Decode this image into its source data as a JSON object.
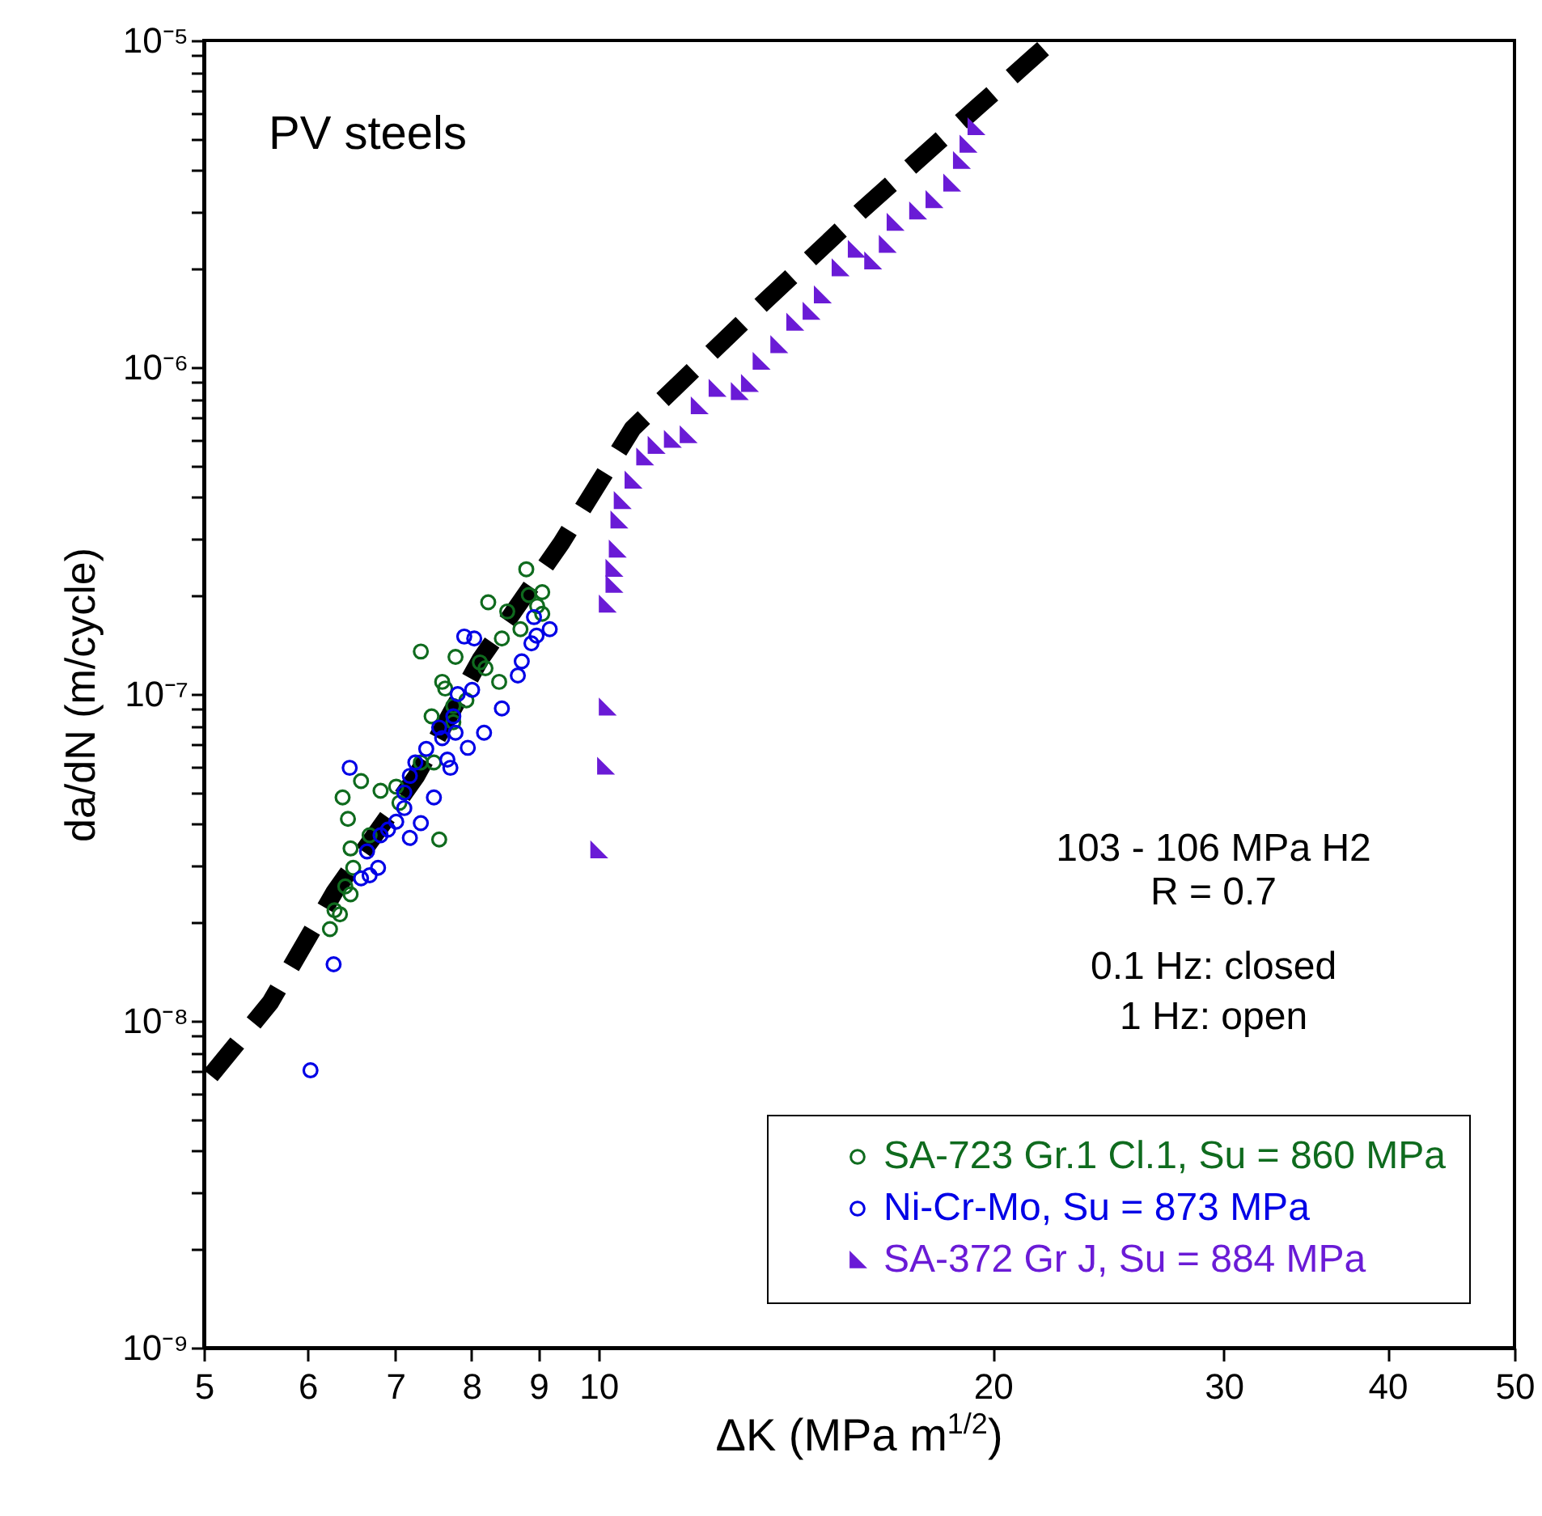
{
  "chart_data": {
    "type": "scatter",
    "title": "PV steels",
    "xlabel": "ΔK (MPa m$^{1/2}$)",
    "ylabel": "da/dN (m/cycle)",
    "annotations": [
      "103 - 106 MPa H2",
      "R = 0.7",
      "0.1 Hz: closed",
      "1 Hz: open"
    ],
    "log": "xy",
    "xlim": [
      5,
      50
    ],
    "ylim": [
      1e-09,
      1e-05
    ],
    "xticks": [
      5,
      6,
      7,
      8,
      9,
      10,
      20,
      30,
      40,
      50
    ],
    "yticks": [
      {
        "value": 1e-09,
        "label": "10⁻⁹"
      },
      {
        "value": 2e-09,
        "label": null
      },
      {
        "value": 3e-09,
        "label": null
      },
      {
        "value": 4e-09,
        "label": null
      },
      {
        "value": 5e-09,
        "label": null
      },
      {
        "value": 6e-09,
        "label": null
      },
      {
        "value": 7e-09,
        "label": null
      },
      {
        "value": 8e-09,
        "label": null
      },
      {
        "value": 9e-09,
        "label": null
      },
      {
        "value": 1e-08,
        "label": "10⁻⁸"
      },
      {
        "value": 2e-08,
        "label": null
      },
      {
        "value": 3e-08,
        "label": null
      },
      {
        "value": 4e-08,
        "label": null
      },
      {
        "value": 5e-08,
        "label": null
      },
      {
        "value": 6e-08,
        "label": null
      },
      {
        "value": 7e-08,
        "label": null
      },
      {
        "value": 8e-08,
        "label": null
      },
      {
        "value": 9e-08,
        "label": null
      },
      {
        "value": 1e-07,
        "label": "10⁻⁷"
      },
      {
        "value": 2e-07,
        "label": null
      },
      {
        "value": 3e-07,
        "label": null
      },
      {
        "value": 4e-07,
        "label": null
      },
      {
        "value": 5e-07,
        "label": null
      },
      {
        "value": 6e-07,
        "label": null
      },
      {
        "value": 7e-07,
        "label": null
      },
      {
        "value": 8e-07,
        "label": null
      },
      {
        "value": 9e-07,
        "label": null
      },
      {
        "value": 1e-06,
        "label": "10⁻⁶"
      },
      {
        "value": 2e-06,
        "label": null
      },
      {
        "value": 3e-06,
        "label": null
      },
      {
        "value": 4e-06,
        "label": null
      },
      {
        "value": 5e-06,
        "label": null
      },
      {
        "value": 6e-06,
        "label": null
      },
      {
        "value": 7e-06,
        "label": null
      },
      {
        "value": 8e-06,
        "label": null
      },
      {
        "value": 9e-06,
        "label": null
      },
      {
        "value": 1e-05,
        "label": "10⁻⁵"
      }
    ],
    "grid": false,
    "legend": "bottom right",
    "series": [
      {
        "name": "SA-723 Gr.1 Cl.1, Su = 860 MPa",
        "color": "#0f6b1e",
        "marker": "circle",
        "x": [
          8.81,
          8.24,
          8.85,
          8.52,
          9.06,
          9.06,
          8.72,
          8.44,
          7.32,
          7.78,
          8.2,
          8.4,
          7.6,
          7.64,
          7.93,
          7.46,
          7.75,
          7.32,
          7.49,
          6.59,
          6.82,
          7.01,
          6.38,
          6.44,
          7.05,
          7.56,
          6.47,
          6.69,
          6.5,
          6.41,
          6.47,
          6.29,
          6.35,
          6.24,
          8.12,
          7.75,
          8.98
        ],
        "values": [
          2.41e-07,
          1.91e-07,
          2.01e-07,
          1.79e-07,
          2.05e-07,
          1.76e-07,
          1.58e-07,
          1.48e-07,
          1.35e-07,
          1.3e-07,
          1.2e-07,
          1.09e-07,
          1.09e-07,
          1.04e-07,
          9.57e-08,
          8.55e-08,
          8.2e-08,
          6.18e-08,
          6.18e-08,
          5.42e-08,
          5.06e-08,
          5.21e-08,
          4.83e-08,
          4.15e-08,
          4.65e-08,
          3.59e-08,
          3.37e-08,
          3.7e-08,
          2.94e-08,
          2.58e-08,
          2.44e-08,
          2.18e-08,
          2.12e-08,
          1.91e-08,
          1.25e-07,
          9.2e-08,
          1.86e-07
        ]
      },
      {
        "name": "Ni-Cr-Mo, Su = 873 MPa",
        "color": "#0000e6",
        "marker": "circle",
        "x": [
          7.9,
          8.04,
          9.18,
          8.93,
          8.97,
          8.89,
          8.74,
          8.68,
          8.01,
          7.81,
          8.44,
          7.75,
          7.78,
          8.18,
          7.95,
          7.6,
          7.67,
          7.71,
          7.39,
          7.25,
          7.49,
          7.18,
          7.32,
          7.18,
          7.11,
          7.01,
          6.91,
          6.46,
          6.82,
          6.66,
          6.79,
          6.69,
          6.59,
          6.28,
          7.11,
          7.56,
          6.03
        ],
        "values": [
          1.5e-07,
          1.48e-07,
          1.58e-07,
          1.72e-07,
          1.51e-07,
          1.43e-07,
          1.26e-07,
          1.14e-07,
          1.03e-07,
          1e-07,
          9.04e-08,
          8.55e-08,
          7.62e-08,
          7.62e-08,
          6.85e-08,
          7.33e-08,
          6.3e-08,
          5.95e-08,
          6.8e-08,
          6.18e-08,
          4.83e-08,
          5.62e-08,
          4.03e-08,
          3.63e-08,
          4.48e-08,
          4.07e-08,
          3.85e-08,
          5.95e-08,
          3.7e-08,
          3.3e-08,
          2.94e-08,
          2.79e-08,
          2.73e-08,
          1.49e-08,
          5e-08,
          7.9e-08,
          7.06e-09
        ]
      },
      {
        "name": "SA-372 Gr J, Su = 884 MPa",
        "color": "#6a1bd6",
        "marker": "triangle",
        "x": [
          10.0,
          10.12,
          10.15,
          10.15,
          10.27,
          10.27,
          10.33,
          10.36,
          10.42,
          10.62,
          10.84,
          11.06,
          11.38,
          11.7,
          11.93,
          12.31,
          12.8,
          13.03,
          13.3,
          13.72,
          14.11,
          14.52,
          14.81,
          15.28,
          15.72,
          16.18,
          16.6,
          16.83,
          17.51,
          18.02,
          18.59,
          18.91,
          19.13,
          19.4
        ],
        "values": [
          3.33e-08,
          6e-08,
          9.1e-08,
          1.88e-07,
          2.16e-07,
          2.42e-07,
          2.77e-07,
          3.4e-07,
          3.9e-07,
          4.5e-07,
          5.3e-07,
          5.75e-07,
          6e-07,
          6.2e-07,
          7.6e-07,
          8.6e-07,
          8.4e-07,
          8.9e-07,
          1.04e-06,
          1.17e-06,
          1.37e-06,
          1.48e-06,
          1.66e-06,
          2.01e-06,
          2.29e-06,
          2.11e-06,
          2.37e-06,
          2.77e-06,
          3e-06,
          3.25e-06,
          3.65e-06,
          4.28e-06,
          4.8e-06,
          5.43e-06
        ]
      },
      {
        "type": "line",
        "color": "#000000",
        "line_style": "dashed",
        "x": [
          5.06,
          5.62,
          6.29,
          7.26,
          8.13,
          9.37,
          10.62,
          13.0,
          15.85,
          19.5,
          22.2
        ],
        "values": [
          6.8e-09,
          1.14e-08,
          2.48e-08,
          5.6e-08,
          1.28e-07,
          2.9e-07,
          6.5e-07,
          1.42e-06,
          3e-06,
          6.3e-06,
          1e-05
        ]
      }
    ]
  }
}
